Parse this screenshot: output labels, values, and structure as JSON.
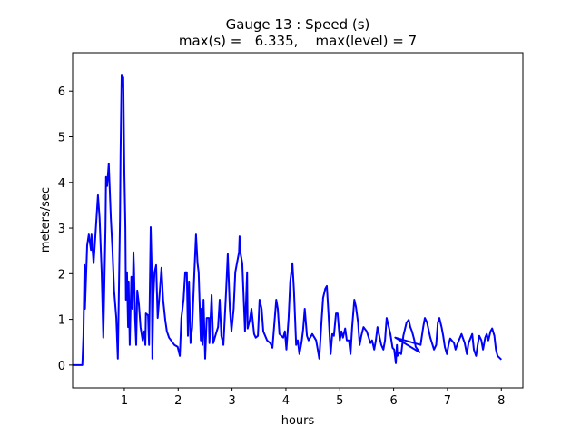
{
  "chart_data": {
    "type": "line",
    "title": "Gauge 13 : Speed (s)",
    "subtitle": "max(s) =   6.335,    max(level) = 7",
    "xlabel": "hours",
    "ylabel": "meters/sec",
    "xlim": [
      0.04,
      8.4
    ],
    "ylim": [
      -0.5,
      6.84
    ],
    "xticks": [
      1,
      2,
      3,
      4,
      5,
      6,
      7,
      8
    ],
    "yticks": [
      0,
      1,
      2,
      3,
      4,
      5,
      6
    ],
    "grid": false,
    "series": [
      {
        "name": "speed",
        "color": "#0000ff",
        "x": [
          0.04,
          0.22,
          0.24,
          0.26,
          0.27,
          0.31,
          0.34,
          0.38,
          0.39,
          0.43,
          0.46,
          0.51,
          0.54,
          0.58,
          0.61,
          0.65,
          0.66,
          0.68,
          0.71,
          0.75,
          0.78,
          0.81,
          0.85,
          0.88,
          0.92,
          0.93,
          0.95,
          0.97,
          0.98,
          1.0,
          1.02,
          1.03,
          1.05,
          1.07,
          1.08,
          1.1,
          1.12,
          1.13,
          1.15,
          1.17,
          1.18,
          1.2,
          1.22,
          1.24,
          1.27,
          1.3,
          1.34,
          1.37,
          1.39,
          1.4,
          1.44,
          1.46,
          1.49,
          1.51,
          1.52,
          1.54,
          1.56,
          1.59,
          1.62,
          1.66,
          1.69,
          1.72,
          1.76,
          1.79,
          1.83,
          1.93,
          1.99,
          2.03,
          2.06,
          2.1,
          2.13,
          2.16,
          2.18,
          2.2,
          2.23,
          2.26,
          2.3,
          2.33,
          2.36,
          2.38,
          2.42,
          2.43,
          2.45,
          2.47,
          2.5,
          2.53,
          2.57,
          2.58,
          2.62,
          2.65,
          2.7,
          2.74,
          2.77,
          2.8,
          2.84,
          2.89,
          2.92,
          2.96,
          2.99,
          3.03,
          3.06,
          3.09,
          3.13,
          3.14,
          3.16,
          3.19,
          3.23,
          3.24,
          3.28,
          3.29,
          3.33,
          3.36,
          3.41,
          3.44,
          3.48,
          3.51,
          3.55,
          3.58,
          3.65,
          3.71,
          3.75,
          3.78,
          3.82,
          3.85,
          3.88,
          3.95,
          3.98,
          4.01,
          4.05,
          4.08,
          4.12,
          4.15,
          4.19,
          4.22,
          4.25,
          4.29,
          4.32,
          4.35,
          4.39,
          4.42,
          4.49,
          4.56,
          4.59,
          4.62,
          4.66,
          4.69,
          4.73,
          4.76,
          4.79,
          4.83,
          4.86,
          4.89,
          4.93,
          4.96,
          5.0,
          5.03,
          5.06,
          5.1,
          5.13,
          5.17,
          5.2,
          5.23,
          5.27,
          5.3,
          5.34,
          5.37,
          5.4,
          5.44,
          5.5,
          5.57,
          5.6,
          5.64,
          5.67,
          5.7,
          5.74,
          5.77,
          5.81,
          5.84,
          5.87,
          5.91,
          5.94,
          5.98,
          6.01,
          6.04,
          6.06,
          6.07,
          6.11,
          6.14,
          6.18,
          6.24,
          6.28,
          6.31,
          6.34,
          6.38,
          6.41,
          6.48,
          6.03,
          6.5,
          6.55,
          6.58,
          6.62,
          6.68,
          6.75,
          6.79,
          6.82,
          6.85,
          6.89,
          6.92,
          6.95,
          6.99,
          7.02,
          7.05,
          7.12,
          7.15,
          7.19,
          7.26,
          7.32,
          7.36,
          7.39,
          7.46,
          7.49,
          7.53,
          7.56,
          7.59,
          7.63,
          7.66,
          7.7,
          7.73,
          7.76,
          7.8,
          7.83,
          7.87,
          7.9,
          7.93,
          8.0
        ],
        "y": [
          0,
          0,
          0.64,
          2.19,
          1.23,
          2.62,
          2.86,
          2.52,
          2.86,
          2.23,
          2.78,
          3.72,
          3.22,
          2.03,
          0.6,
          3.02,
          4.12,
          3.92,
          4.41,
          3.22,
          2.52,
          1.63,
          1.03,
          0.14,
          3.22,
          4.61,
          6.34,
          6.1,
          6.3,
          4.21,
          3.02,
          1.43,
          2.03,
          0.83,
          1.83,
          0.44,
          1.43,
          1.93,
          1.23,
          2.47,
          2.13,
          1.03,
          0.44,
          1.63,
          1.33,
          0.83,
          0.54,
          0.74,
          0.44,
          1.13,
          1.09,
          0.44,
          3.02,
          2.03,
          0.14,
          1.53,
          2.03,
          2.19,
          1.03,
          1.63,
          2.13,
          1.43,
          0.99,
          0.74,
          0.6,
          0.44,
          0.4,
          0.2,
          1.03,
          1.43,
          2.03,
          2.03,
          0.64,
          1.83,
          0.48,
          0.83,
          2.03,
          2.86,
          2.23,
          2.03,
          0.54,
          1.23,
          0.44,
          1.43,
          0.14,
          1.03,
          1.03,
          0.48,
          1.53,
          0.48,
          0.68,
          0.83,
          1.43,
          0.64,
          0.44,
          1.63,
          2.43,
          1.23,
          0.74,
          1.23,
          2.03,
          2.23,
          2.47,
          2.82,
          2.43,
          2.23,
          1.03,
          0.74,
          2.03,
          0.8,
          0.99,
          1.23,
          0.68,
          0.6,
          0.64,
          1.43,
          1.23,
          0.74,
          0.54,
          0.48,
          0.38,
          0.83,
          1.43,
          1.23,
          0.68,
          0.6,
          0.74,
          0.34,
          1.03,
          1.83,
          2.23,
          1.63,
          0.44,
          0.54,
          0.24,
          0.5,
          0.78,
          1.23,
          0.64,
          0.54,
          0.68,
          0.54,
          0.34,
          0.14,
          0.93,
          1.47,
          1.67,
          1.73,
          1.13,
          0.24,
          0.68,
          0.64,
          1.13,
          1.13,
          0.54,
          0.74,
          0.6,
          0.8,
          0.54,
          0.54,
          0.24,
          0.83,
          1.43,
          1.27,
          0.93,
          0.44,
          0.64,
          0.83,
          0.74,
          0.48,
          0.54,
          0.34,
          0.54,
          0.83,
          0.6,
          0.44,
          0.34,
          0.54,
          1.03,
          0.83,
          0.68,
          0.38,
          0.34,
          0.04,
          0.44,
          0.2,
          0.28,
          0.24,
          0.64,
          0.93,
          0.99,
          0.83,
          0.74,
          0.56,
          0.4,
          0.28,
          0.6,
          0.44,
          0.83,
          1.03,
          0.93,
          0.6,
          0.34,
          0.44,
          0.93,
          1.03,
          0.83,
          0.64,
          0.4,
          0.24,
          0.44,
          0.58,
          0.48,
          0.34,
          0.48,
          0.68,
          0.48,
          0.24,
          0.48,
          0.68,
          0.34,
          0.2,
          0.44,
          0.64,
          0.54,
          0.34,
          0.6,
          0.68,
          0.54,
          0.74,
          0.8,
          0.64,
          0.34,
          0.2,
          0.12
        ]
      }
    ]
  }
}
